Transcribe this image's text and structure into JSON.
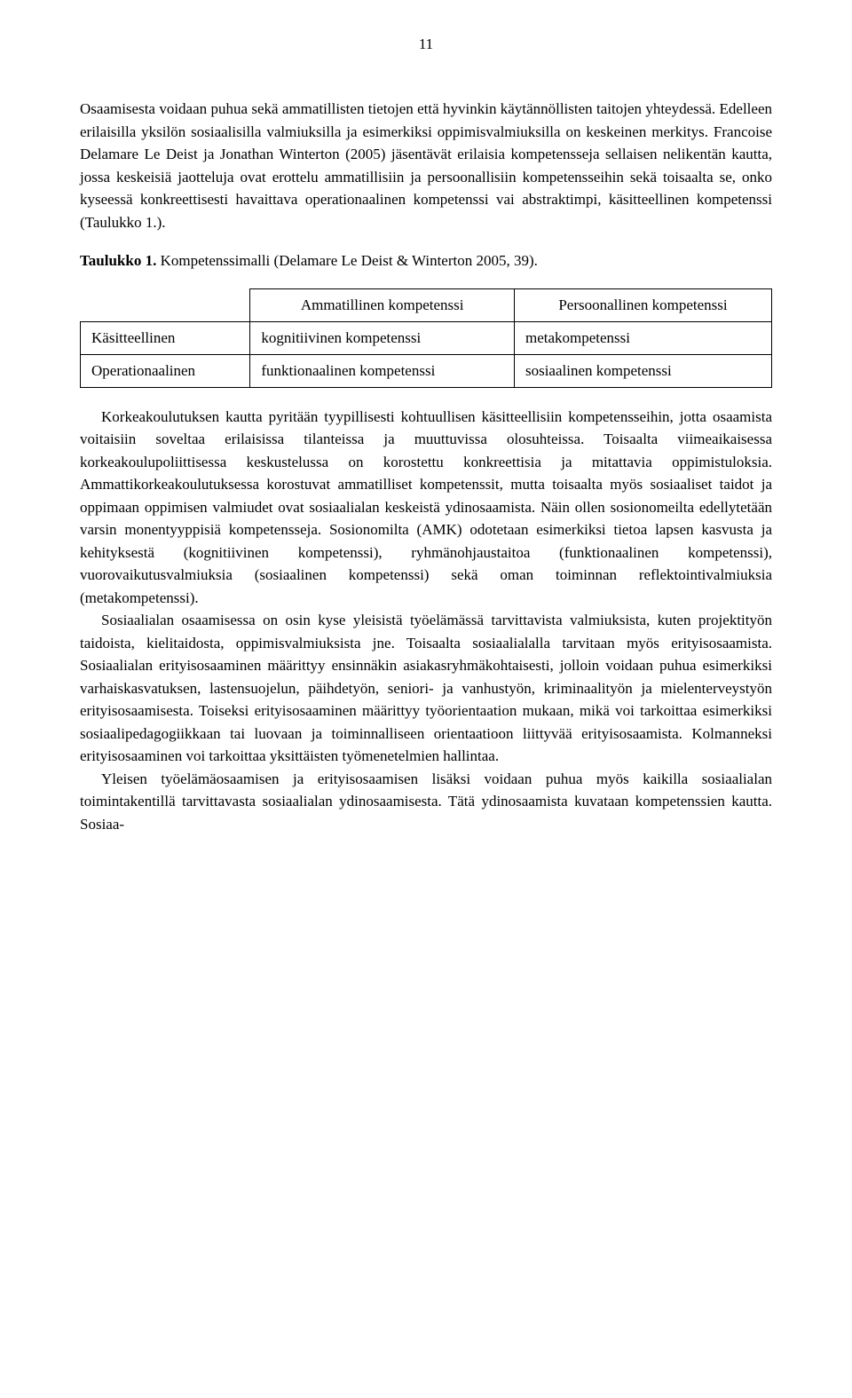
{
  "page_number": "11",
  "paragraph1": "Osaamisesta voidaan puhua sekä ammatillisten tietojen että hyvinkin käytännöllisten taitojen yhteydessä. Edelleen erilaisilla yksilön sosiaalisilla valmiuksilla ja esimerkiksi oppimisvalmiuksilla on keskeinen merkitys. Francoise Delamare Le Deist ja Jonathan Winterton (2005) jäsentävät erilaisia kompetensseja sellaisen nelikentän kautta, jossa keskeisiä jaotteluja ovat erottelu ammatillisiin ja persoonallisiin kompetensseihin sekä toisaalta se, onko kyseessä konkreettisesti havaittava operationaalinen kompetenssi vai abstraktimpi, käsitteellinen kompetenssi (Taulukko 1.).",
  "table_caption": {
    "label": "Taulukko 1.",
    "text": "Kompetenssimalli (Delamare Le Deist & Winterton 2005, 39)."
  },
  "table": {
    "headers": [
      "",
      "Ammatillinen kompetenssi",
      "Persoonallinen kompetenssi"
    ],
    "rows": [
      [
        "Käsitteellinen",
        "kognitiivinen kompetenssi",
        "metakompetenssi"
      ],
      [
        "Operationaalinen",
        "funktionaalinen kompetenssi",
        "sosiaalinen kompetenssi"
      ]
    ]
  },
  "paragraph2": "Korkeakoulutuksen kautta pyritään tyypillisesti kohtuullisen käsitteellisiin kompetensseihin, jotta osaamista voitaisiin soveltaa erilaisissa tilanteissa ja muuttuvissa olosuhteissa. Toisaalta viimeaikaisessa korkeakoulupoliittisessa keskustelussa on korostettu konkreettisia ja mitattavia oppimistuloksia. Ammattikorkeakoulutuksessa korostuvat ammatilliset kompetenssit, mutta toisaalta myös sosiaaliset taidot ja oppimaan oppimisen valmiudet ovat sosiaalialan keskeistä ydinosaamista. Näin ollen sosionomeilta edellytetään varsin monentyyppisiä kompetensseja. Sosionomilta (AMK) odotetaan esimerkiksi tietoa lapsen kasvusta ja kehityksestä (kognitiivinen kompetenssi), ryhmänohjaustaitoa (funktionaalinen kompetenssi), vuorovaikutusvalmiuksia (sosiaalinen kompetenssi) sekä oman toiminnan reflektointivalmiuksia (metakompetenssi).",
  "paragraph3": "Sosiaalialan osaamisessa on osin kyse yleisistä työelämässä tarvittavista valmiuksista, kuten projektityön taidoista, kielitaidosta, oppimisvalmiuksista jne. Toisaalta sosiaalialalla tarvitaan myös erityisosaamista. Sosiaalialan erityisosaaminen määrittyy ensinnäkin asiakasryhmäkohtaisesti, jolloin voidaan puhua esimerkiksi varhaiskasvatuksen, lastensuojelun, päihdetyön, seniori- ja vanhustyön, kriminaalityön ja mielenterveystyön erityisosaamisesta. Toiseksi erityisosaaminen määrittyy työorientaation mukaan, mikä voi tarkoittaa esimerkiksi sosiaalipedagogiikkaan tai luovaan ja toiminnalliseen orientaatioon liittyvää erityisosaamista. Kolmanneksi erityisosaaminen voi tarkoittaa yksittäisten työmenetelmien hallintaa.",
  "paragraph4": "Yleisen työelämäosaamisen ja erityisosaamisen lisäksi voidaan puhua myös kaikilla sosiaalialan toimintakentillä tarvittavasta sosiaalialan ydinosaamisesta. Tätä ydinosaamista kuvataan kompetenssien kautta. Sosiaa-"
}
